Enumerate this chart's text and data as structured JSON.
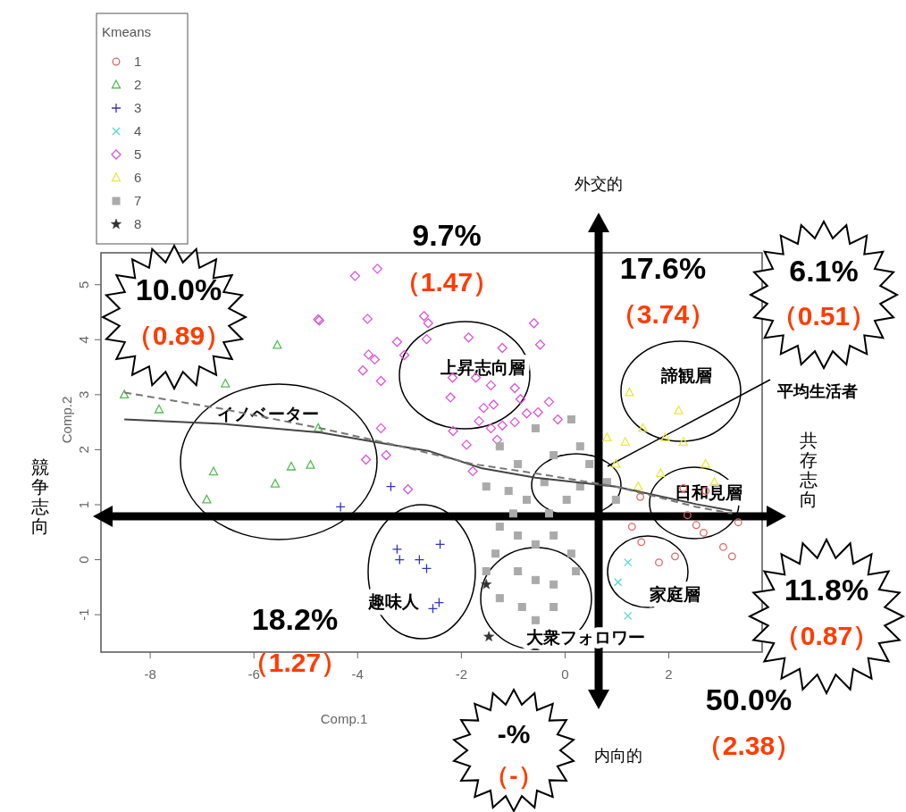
{
  "chart_data": {
    "type": "scatter",
    "xlabel": "Comp.1",
    "ylabel": "Comp.2",
    "legend_title": "Kmeans",
    "legend": "top left",
    "grid": false,
    "xlim": [
      -8.95,
      3.8
    ],
    "ylim": [
      -1.68,
      5.58
    ],
    "xticks": [
      -8,
      -6,
      -4,
      -2,
      0,
      2
    ],
    "yticks": [
      -1,
      0,
      1,
      2,
      3,
      4,
      5
    ],
    "series": [
      {
        "name": "1",
        "color": "#e06666",
        "marker": "circle",
        "x": [
          1.45,
          1.29,
          1.47,
          1.81,
          2.12,
          2.28,
          2.71,
          2.36,
          2.53,
          2.67,
          3.05,
          3.22,
          3.34
        ],
        "values": [
          1.14,
          0.6,
          0.32,
          -0.05,
          0.06,
          1.3,
          1.25,
          0.81,
          0.63,
          0.49,
          0.23,
          0.06,
          0.68
        ]
      },
      {
        "name": "2",
        "color": "#55bb55",
        "marker": "triangle",
        "x": [
          -5.55,
          -6.55,
          -8.5,
          -7.83,
          -4.76,
          -6.78,
          -6.91,
          -5.59,
          -5.28,
          -4.91
        ],
        "values": [
          3.9,
          3.2,
          3.0,
          2.73,
          2.39,
          1.6,
          1.09,
          1.38,
          1.69,
          1.72
        ]
      },
      {
        "name": "3",
        "color": "#3333bb",
        "marker": "plus",
        "x": [
          -3.36,
          -4.33,
          -3.24,
          -3.19,
          -2.41,
          -2.81,
          -2.67,
          -2.43,
          -2.55
        ],
        "values": [
          1.33,
          0.96,
          0.19,
          0.0,
          0.28,
          0.0,
          -0.16,
          -0.78,
          -0.89
        ]
      },
      {
        "name": "4",
        "color": "#55d5d5",
        "marker": "cross",
        "x": [
          1.21,
          1.02,
          1.21
        ],
        "values": [
          -0.05,
          -0.41,
          -1.02
        ]
      },
      {
        "name": "5",
        "color": "#d855d8",
        "marker": "diamond",
        "x": [
          -4.05,
          -3.62,
          -4.74,
          -3.81,
          -2.72,
          -2.64,
          -3.24,
          -3.79,
          -3.67,
          -3.9,
          -3.55,
          -3.1,
          -2.67,
          -1.86,
          -1.21,
          -2.17,
          -1.72,
          -1.43,
          -0.97,
          -0.86,
          -1.57,
          -1.38,
          -1.66,
          -1.43,
          -1.21,
          -0.97,
          -0.74,
          -0.52,
          -2.16,
          -1.9,
          -1.31,
          -3.55,
          -3.45,
          -4.76,
          -0.6,
          -0.48,
          -3.03,
          -1.78,
          -0.31,
          -0.14,
          -3.84,
          -2.21
        ],
        "values": [
          5.16,
          5.29,
          4.35,
          4.38,
          4.43,
          4.3,
          3.96,
          3.73,
          3.64,
          3.44,
          3.25,
          3.72,
          4.01,
          4.04,
          3.85,
          3.31,
          3.31,
          3.17,
          3.12,
          2.92,
          2.76,
          2.82,
          2.52,
          2.39,
          2.44,
          2.5,
          2.66,
          2.68,
          2.34,
          2.09,
          2.18,
          2.39,
          1.9,
          4.37,
          4.3,
          3.91,
          1.28,
          1.61,
          2.87,
          2.55,
          1.82,
          2.95
        ]
      },
      {
        "name": "6",
        "color": "#e8e84a",
        "marker": "triangle",
        "x": [
          1.24,
          0.81,
          1.16,
          1.5,
          1.93,
          2.28,
          1.84,
          0.98,
          2.19,
          2.71,
          1.41,
          2.88
        ],
        "values": [
          3.04,
          2.22,
          2.14,
          2.39,
          2.22,
          2.14,
          1.57,
          1.74,
          2.71,
          1.74,
          1.33,
          1.41
        ]
      },
      {
        "name": "7",
        "color": "#aaaaaa",
        "marker": "square",
        "x": [
          -1.26,
          -0.91,
          -0.57,
          -0.22,
          0.12,
          0.29,
          -0.4,
          -0.74,
          -1.09,
          -1.52,
          -1.26,
          -0.91,
          -0.57,
          -0.22,
          0.12,
          -1.34,
          -0.91,
          -0.57,
          -0.22,
          0.21,
          -1.26,
          -0.83,
          -0.57,
          -0.22,
          -1.52,
          0.29,
          0.47,
          0.81,
          0.98,
          0.03,
          -0.31,
          -1.0
        ],
        "values": [
          2.06,
          1.74,
          2.39,
          1.9,
          2.55,
          2.06,
          1.41,
          1.09,
          1.25,
          1.33,
          0.6,
          0.44,
          0.28,
          0.44,
          0.11,
          0.11,
          -0.21,
          -0.37,
          -0.45,
          -0.21,
          -0.7,
          -0.86,
          -1.1,
          -0.86,
          -0.21,
          1.33,
          1.74,
          1.41,
          1.09,
          1.09,
          0.84,
          0.84
        ]
      },
      {
        "name": "8",
        "color": "#333333",
        "marker": "star",
        "x": [
          -1.52,
          -1.47
        ],
        "values": [
          -0.45,
          -1.4
        ]
      },
      {
        "type": "line",
        "color": "#444444",
        "marker": "none",
        "line_style": "solid",
        "x": [
          -8.5,
          -6.6,
          -4.71,
          -3.67,
          -2.64,
          -1.6,
          -0.57,
          0.98,
          2.53,
          3.22
        ],
        "values": [
          2.55,
          2.47,
          2.31,
          2.14,
          1.98,
          1.66,
          1.49,
          1.33,
          1.01,
          0.89
        ]
      },
      {
        "type": "line",
        "color": "#777777",
        "marker": "none",
        "line_style": "dashed",
        "x": [
          -8.5,
          -6.6,
          -4.71,
          -3.16,
          -1.78,
          -0.57,
          0.98,
          2.53,
          3.22
        ],
        "values": [
          3.04,
          2.74,
          2.39,
          2.06,
          1.74,
          1.57,
          1.33,
          0.96,
          0.84
        ]
      }
    ],
    "annotations": [
      "外交的",
      "内向的",
      "競争志向",
      "共存志向",
      "9.7%",
      "（1.47）",
      "17.6%",
      "（3.74）",
      "10.0%",
      "（0.89）",
      "6.1%",
      "（0.51）",
      "11.8%",
      "（0.87）",
      "18.2%",
      "（1.27）",
      "-%",
      "（-）",
      "50.0%",
      "（2.38）",
      "イノベーター",
      "上昇志向層",
      "諦観層",
      "平均生活者",
      "日和見層",
      "趣味人",
      "大衆フォロワー",
      "家庭層"
    ]
  }
}
